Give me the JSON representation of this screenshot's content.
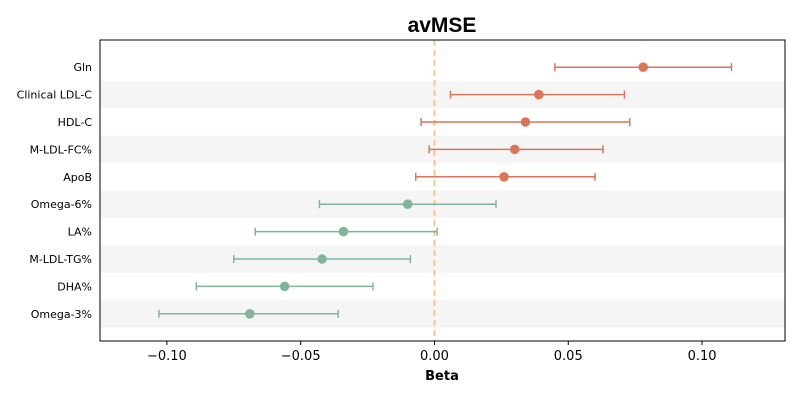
{
  "chart_data": {
    "type": "forest",
    "title": "avMSE",
    "xlabel": "Beta",
    "ylabel": "",
    "xlim": [
      -0.125,
      0.131
    ],
    "xticks": [
      -0.1,
      -0.05,
      0.0,
      0.05,
      0.1
    ],
    "xtick_labels": [
      "−0.10",
      "−0.05",
      "0.00",
      "0.05",
      "0.10"
    ],
    "reference_line": 0.0,
    "reference_color": "#f2c38f",
    "row_shade_color": "#f5f5f5",
    "colors": {
      "positive": "#d9765a",
      "negative": "#82b49c"
    },
    "items": [
      {
        "label": "Gln",
        "beta": 0.078,
        "lower": 0.045,
        "upper": 0.111,
        "group": "positive"
      },
      {
        "label": "Clinical LDL-C",
        "beta": 0.039,
        "lower": 0.006,
        "upper": 0.071,
        "group": "positive"
      },
      {
        "label": "HDL-C",
        "beta": 0.034,
        "lower": -0.005,
        "upper": 0.073,
        "group": "positive"
      },
      {
        "label": "M-LDL-FC%",
        "beta": 0.03,
        "lower": -0.002,
        "upper": 0.063,
        "group": "positive"
      },
      {
        "label": "ApoB",
        "beta": 0.026,
        "lower": -0.007,
        "upper": 0.06,
        "group": "positive"
      },
      {
        "label": "Omega-6%",
        "beta": -0.01,
        "lower": -0.043,
        "upper": 0.023,
        "group": "negative"
      },
      {
        "label": "LA%",
        "beta": -0.034,
        "lower": -0.067,
        "upper": 0.001,
        "group": "negative"
      },
      {
        "label": "M-LDL-TG%",
        "beta": -0.042,
        "lower": -0.075,
        "upper": -0.009,
        "group": "negative"
      },
      {
        "label": "DHA%",
        "beta": -0.056,
        "lower": -0.089,
        "upper": -0.023,
        "group": "negative"
      },
      {
        "label": "Omega-3%",
        "beta": -0.069,
        "lower": -0.103,
        "upper": -0.036,
        "group": "negative"
      }
    ]
  }
}
